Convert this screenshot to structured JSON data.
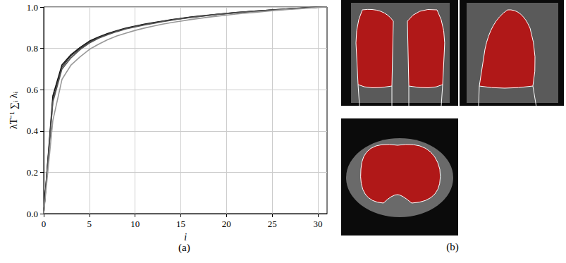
{
  "chart_data": {
    "type": "line",
    "caption": "(a)",
    "x_label": "i",
    "y_label": "λT⁻¹ ∑ᵢ λᵢ",
    "x": [
      0,
      1,
      2,
      3,
      4,
      5,
      6,
      7,
      8,
      9,
      10,
      11,
      12,
      13,
      14,
      15,
      16,
      17,
      18,
      19,
      20,
      21,
      22,
      23,
      24,
      25,
      26,
      27,
      28,
      29,
      30,
      31
    ],
    "series": [
      {
        "color": "#111111",
        "values": [
          0,
          0.57,
          0.72,
          0.77,
          0.805,
          0.835,
          0.855,
          0.872,
          0.886,
          0.898,
          0.908,
          0.917,
          0.925,
          0.932,
          0.939,
          0.945,
          0.951,
          0.956,
          0.961,
          0.965,
          0.969,
          0.973,
          0.977,
          0.98,
          0.983,
          0.986,
          0.989,
          0.992,
          0.995,
          0.997,
          0.999,
          1.0
        ]
      },
      {
        "color": "#333333",
        "values": [
          0,
          0.55,
          0.71,
          0.765,
          0.8,
          0.83,
          0.852,
          0.869,
          0.884,
          0.896,
          0.906,
          0.915,
          0.923,
          0.931,
          0.938,
          0.944,
          0.95,
          0.955,
          0.96,
          0.965,
          0.969,
          0.973,
          0.976,
          0.98,
          0.983,
          0.986,
          0.989,
          0.992,
          0.994,
          0.997,
          0.999,
          1.0
        ]
      },
      {
        "color": "#555555",
        "values": [
          0,
          0.54,
          0.7,
          0.755,
          0.795,
          0.826,
          0.849,
          0.866,
          0.881,
          0.894,
          0.904,
          0.913,
          0.921,
          0.929,
          0.936,
          0.943,
          0.949,
          0.954,
          0.959,
          0.964,
          0.968,
          0.972,
          0.976,
          0.979,
          0.982,
          0.985,
          0.988,
          0.991,
          0.994,
          0.997,
          0.999,
          1.0
        ]
      },
      {
        "color": "#999999",
        "values": [
          0,
          0.45,
          0.65,
          0.72,
          0.76,
          0.795,
          0.82,
          0.842,
          0.86,
          0.874,
          0.887,
          0.898,
          0.908,
          0.917,
          0.925,
          0.932,
          0.939,
          0.945,
          0.951,
          0.956,
          0.961,
          0.966,
          0.97,
          0.974,
          0.978,
          0.982,
          0.986,
          0.989,
          0.992,
          0.995,
          0.998,
          1.0
        ]
      }
    ],
    "xlim": [
      0,
      31
    ],
    "xticks": [
      0,
      5,
      10,
      15,
      20,
      25,
      30
    ],
    "ylim": [
      0,
      1
    ],
    "yticks": [
      {
        "value": 0,
        "label": "0.0"
      },
      {
        "value": 0.2,
        "label": "0.2"
      },
      {
        "value": 0.4,
        "label": "0.4"
      },
      {
        "value": 0.6,
        "label": "0.6"
      },
      {
        "value": 0.8,
        "label": "0.8"
      },
      {
        "value": 1,
        "label": "1.0"
      }
    ],
    "grid": true
  },
  "image_panel": {
    "caption": "(b)"
  }
}
